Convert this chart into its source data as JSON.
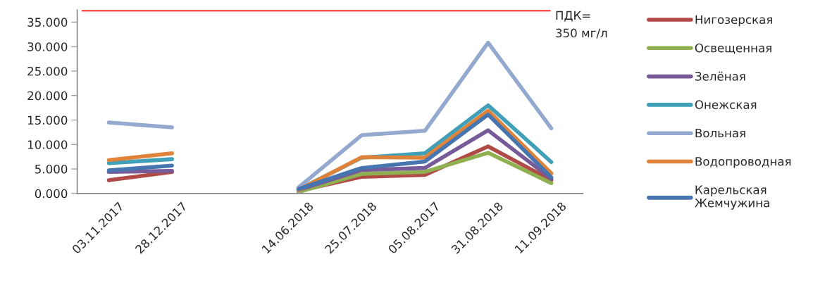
{
  "chart_data": {
    "type": "line",
    "categories": [
      "03.11.2017",
      "28.12.2017",
      null,
      "14.06.2018",
      "25.07.2018",
      "05.08.2017",
      "31.08.2018",
      "11.09.2018"
    ],
    "series": [
      {
        "name": "Нигозерская",
        "color": "#b04a47",
        "values": [
          2.7,
          4.4,
          null,
          0.5,
          3.4,
          3.8,
          9.6,
          2.7
        ]
      },
      {
        "name": "Освещенная",
        "color": "#8fb050",
        "values": [
          null,
          null,
          null,
          0.3,
          4.0,
          4.4,
          8.3,
          2.1
        ]
      },
      {
        "name": "Зелёная",
        "color": "#775a98",
        "values": [
          4.4,
          4.6,
          null,
          0.7,
          4.8,
          5.2,
          12.9,
          3.0
        ]
      },
      {
        "name": "Онежская",
        "color": "#419fb8",
        "values": [
          6.2,
          7.0,
          null,
          0.8,
          7.3,
          8.2,
          18.0,
          6.4
        ]
      },
      {
        "name": "Вольная",
        "color": "#93a9cf",
        "values": [
          14.5,
          13.5,
          null,
          1.2,
          11.9,
          12.8,
          30.8,
          13.3
        ]
      },
      {
        "name": "Водопроводная",
        "color": "#e0833a",
        "values": [
          6.8,
          8.2,
          null,
          0.7,
          7.4,
          7.3,
          16.9,
          4.1
        ]
      },
      {
        "name": "Карельская\nЖемчужина",
        "color": "#4675b0",
        "values": [
          4.7,
          5.7,
          null,
          0.9,
          5.2,
          6.5,
          16.1,
          3.3
        ]
      }
    ],
    "ylim": [
      0,
      37.5
    ],
    "yticks": [
      {
        "value": 0,
        "label": "0.000"
      },
      {
        "value": 5,
        "label": "5.000"
      },
      {
        "value": 10,
        "label": "10.000"
      },
      {
        "value": 15,
        "label": "15.000"
      },
      {
        "value": 20,
        "label": "20.000"
      },
      {
        "value": 25,
        "label": "25.000"
      },
      {
        "value": 30,
        "label": "30.000"
      },
      {
        "value": 35,
        "label": "35.000"
      }
    ],
    "ref_lines": [
      {
        "axis": "y",
        "value": 37.3,
        "color": "#ff0000"
      }
    ],
    "annotations": [
      "ПДК=\n350 мг/л"
    ],
    "legend": "right",
    "grid": false,
    "marker": "none",
    "line_style": "solid"
  }
}
